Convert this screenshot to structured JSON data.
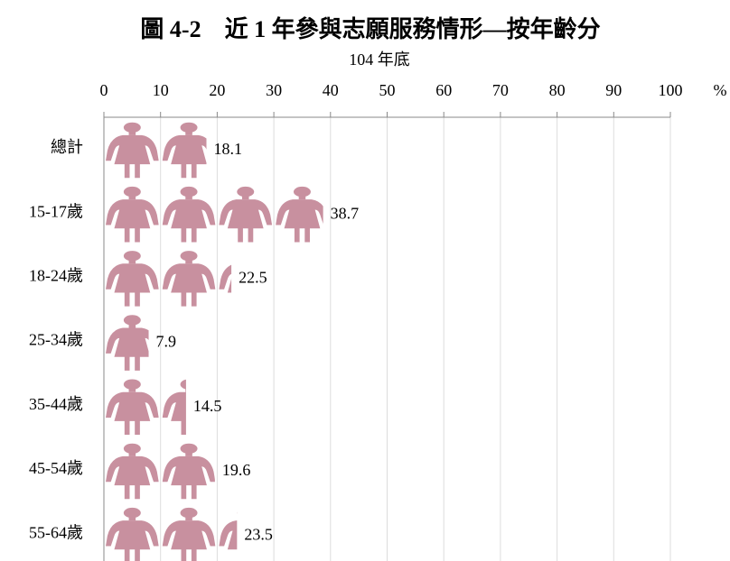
{
  "chart_data": {
    "type": "pictograph_bar",
    "title": "圖 4-2　近 1 年參與志願服務情形—按年齡分",
    "subtitle": "104 年底",
    "xlabel": "%",
    "categories": [
      "總計",
      "15-17歲",
      "18-24歲",
      "25-34歲",
      "35-44歲",
      "45-54歲",
      "55-64歲"
    ],
    "values": [
      18.1,
      38.7,
      22.5,
      7.9,
      14.5,
      19.6,
      23.5
    ],
    "color": "#c8909f",
    "xlim": [
      0,
      100
    ],
    "xticks": [
      0,
      10,
      20,
      30,
      40,
      50,
      60,
      70,
      80,
      90,
      100
    ],
    "grid": true
  }
}
